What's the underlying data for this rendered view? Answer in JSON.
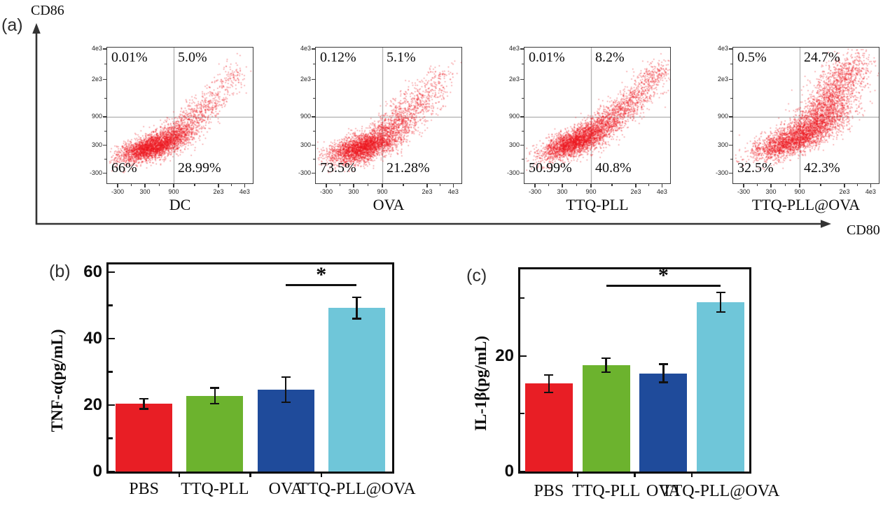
{
  "panels": {
    "a": {
      "letter": "(a)",
      "x_axis_label": "CD80",
      "y_axis_label": "CD86"
    },
    "b": {
      "letter": "(b)"
    },
    "c": {
      "letter": "(c)"
    }
  },
  "colors": {
    "scatter_dot": "#ee141c",
    "axis_line": "#333333",
    "quadrant_line": "#9a9a9a",
    "bar_colors": [
      "#e81e25",
      "#6cb32e",
      "#1f4b9b",
      "#6fc6d9"
    ]
  },
  "chart_data": [
    {
      "type": "scatter",
      "panel": "a",
      "description": "Flow cytometry dot plots of CD86 vs CD80 expression",
      "x_axis_label": "CD80",
      "y_axis_label": "CD86",
      "x_tick_labels": [
        "-300",
        "300",
        "900",
        "2e3",
        "4e3"
      ],
      "y_tick_labels": [
        "-300",
        "300",
        "900",
        "2e3",
        "4e3"
      ],
      "quadrant_gate_value": "900",
      "plots": [
        {
          "name": "DC",
          "quadrants": {
            "upper_left": "0.01%",
            "upper_right": "5.0%",
            "lower_left": "66%",
            "lower_right": "28.99%"
          },
          "cloud_clusters": [
            [
              2600,
              0.3,
              0.27,
              0.115,
              0.042,
              16
            ],
            [
              800,
              0.49,
              0.385,
              0.1,
              0.05,
              26
            ],
            [
              340,
              0.68,
              0.57,
              0.11,
              0.05,
              33
            ],
            [
              120,
              0.85,
              0.78,
              0.075,
              0.05,
              38
            ]
          ]
        },
        {
          "name": "OVA",
          "quadrants": {
            "upper_left": "0.12%",
            "upper_right": "5.1%",
            "lower_left": "73.5%",
            "lower_right": "21.28%"
          },
          "cloud_clusters": [
            [
              2600,
              0.31,
              0.265,
              0.115,
              0.048,
              16
            ],
            [
              900,
              0.52,
              0.41,
              0.12,
              0.06,
              26
            ],
            [
              380,
              0.69,
              0.6,
              0.11,
              0.065,
              30
            ],
            [
              90,
              0.83,
              0.77,
              0.07,
              0.05,
              32
            ]
          ]
        },
        {
          "name": "TTQ-PLL",
          "quadrants": {
            "upper_left": "0.01%",
            "upper_right": "8.2%",
            "lower_left": "50.99%",
            "lower_right": "40.8%"
          },
          "cloud_clusters": [
            [
              2300,
              0.33,
              0.3,
              0.115,
              0.045,
              20
            ],
            [
              950,
              0.52,
              0.42,
              0.11,
              0.05,
              28
            ],
            [
              560,
              0.71,
              0.59,
              0.115,
              0.05,
              34
            ],
            [
              260,
              0.87,
              0.79,
              0.085,
              0.045,
              37
            ]
          ]
        },
        {
          "name": "TTQ-PLL@OVA",
          "quadrants": {
            "upper_left": "0.5%",
            "upper_right": "24.7%",
            "lower_left": "32.5%",
            "lower_right": "42.3%"
          },
          "cloud_clusters": [
            [
              1700,
              0.37,
              0.3,
              0.125,
              0.05,
              18
            ],
            [
              1400,
              0.55,
              0.43,
              0.12,
              0.06,
              24
            ],
            [
              950,
              0.66,
              0.6,
              0.1,
              0.078,
              38
            ],
            [
              620,
              0.77,
              0.8,
              0.095,
              0.068,
              42
            ]
          ]
        }
      ]
    },
    {
      "type": "bar",
      "panel": "b",
      "ylabel": "TNF-α(pg/mL)",
      "categories": [
        "PBS",
        "TTQ-PLL",
        "OVA",
        "TTQ-PLL@OVA"
      ],
      "values": [
        20.4,
        22.8,
        24.6,
        49.2
      ],
      "errors": [
        1.5,
        2.4,
        3.8,
        3.2
      ],
      "ylim": [
        0,
        62
      ],
      "ytick_values": [
        0,
        20,
        40,
        60
      ],
      "ytick_labels": [
        "0",
        "20",
        "40",
        "60"
      ],
      "minor_ytick_values": [
        10,
        30,
        50
      ],
      "grid": false,
      "significance": {
        "label": "*",
        "from_category": "OVA",
        "from_index": 2,
        "to_category": "TTQ-PLL@OVA",
        "to_index": 3,
        "y_value": 56.4
      }
    },
    {
      "type": "bar",
      "panel": "c",
      "ylabel": "IL-1β(pg/mL)",
      "categories": [
        "PBS",
        "TTQ-PLL",
        "OVA",
        "TTQ-PLL@OVA"
      ],
      "values": [
        15.2,
        18.4,
        17.0,
        29.3
      ],
      "errors": [
        1.5,
        1.2,
        1.6,
        1.7
      ],
      "ylim": [
        0,
        35
      ],
      "ytick_values": [
        0,
        20
      ],
      "ytick_labels": [
        "0",
        "20"
      ],
      "minor_ytick_values": [
        10,
        30
      ],
      "grid": false,
      "significance": {
        "label": "*",
        "from_category": "TTQ-PLL",
        "from_index": 1,
        "to_category": "TTQ-PLL@OVA",
        "to_index": 3,
        "y_value": 32.3
      }
    }
  ]
}
